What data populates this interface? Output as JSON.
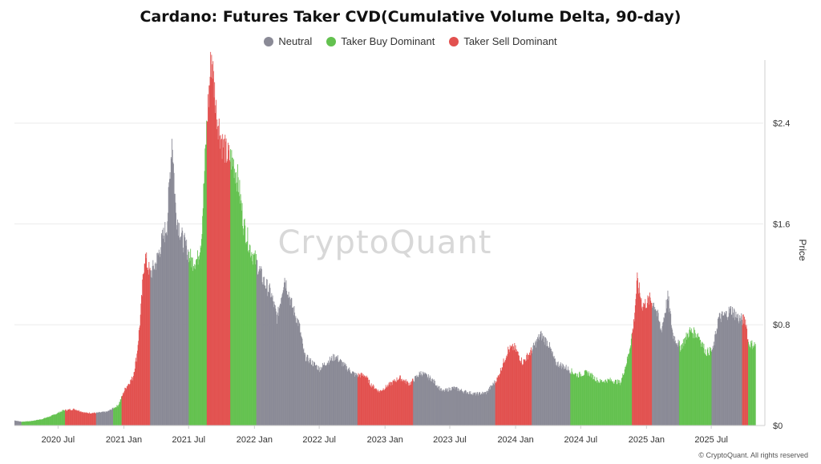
{
  "page": {
    "title": "Cardano: Futures Taker CVD(Cumulative Volume Delta, 90-day)",
    "watermark": "CryptoQuant",
    "footer": "© CryptoQuant. All rights reserved"
  },
  "legend": [
    {
      "label": "Neutral",
      "color": "#8a8a96"
    },
    {
      "label": "Taker Buy Dominant",
      "color": "#63c14f"
    },
    {
      "label": "Taker Sell Dominant",
      "color": "#e2514f"
    }
  ],
  "chart_data": {
    "type": "bar",
    "title": "Cardano: Futures Taker CVD(Cumulative Volume Delta, 90-day)",
    "ylabel": "Price",
    "y_axis_side": "right",
    "ylim": [
      0,
      2.9
    ],
    "y_ticks": [
      0,
      0.8,
      1.6,
      2.4
    ],
    "y_tick_labels": [
      "$0",
      "$0.8",
      "$1.6",
      "$2.4"
    ],
    "x_range": [
      "2020-03-01",
      "2025-11-01"
    ],
    "x_ticks": [
      "2020-07-01",
      "2021-01-01",
      "2021-07-01",
      "2022-01-01",
      "2022-07-01",
      "2023-01-01",
      "2023-07-01",
      "2024-01-01",
      "2024-07-01",
      "2025-01-01",
      "2025-07-01"
    ],
    "x_tick_labels": [
      "2020 Jul",
      "2021 Jan",
      "2021 Jul",
      "2022 Jan",
      "2022 Jul",
      "2023 Jan",
      "2023 Jul",
      "2024 Jan",
      "2024 Jul",
      "2025 Jan",
      "2025 Jul"
    ],
    "grid": true,
    "legend_position": "top-center",
    "price_series": [
      [
        "2020-03-01",
        0.04
      ],
      [
        "2020-03-20",
        0.03
      ],
      [
        "2020-04-15",
        0.035
      ],
      [
        "2020-05-15",
        0.05
      ],
      [
        "2020-06-15",
        0.08
      ],
      [
        "2020-07-15",
        0.12
      ],
      [
        "2020-08-15",
        0.13
      ],
      [
        "2020-09-15",
        0.1
      ],
      [
        "2020-10-15",
        0.1
      ],
      [
        "2020-11-15",
        0.11
      ],
      [
        "2020-12-15",
        0.16
      ],
      [
        "2021-01-05",
        0.3
      ],
      [
        "2021-01-25",
        0.38
      ],
      [
        "2021-02-05",
        0.55
      ],
      [
        "2021-02-15",
        0.85
      ],
      [
        "2021-02-27",
        1.35
      ],
      [
        "2021-03-15",
        1.2
      ],
      [
        "2021-04-01",
        1.3
      ],
      [
        "2021-04-15",
        1.45
      ],
      [
        "2021-05-01",
        1.6
      ],
      [
        "2021-05-15",
        2.3
      ],
      [
        "2021-05-25",
        1.7
      ],
      [
        "2021-06-10",
        1.5
      ],
      [
        "2021-06-25",
        1.4
      ],
      [
        "2021-07-10",
        1.3
      ],
      [
        "2021-07-25",
        1.32
      ],
      [
        "2021-08-05",
        1.5
      ],
      [
        "2021-08-20",
        2.4
      ],
      [
        "2021-09-02",
        2.95
      ],
      [
        "2021-09-15",
        2.5
      ],
      [
        "2021-10-01",
        2.25
      ],
      [
        "2021-10-15",
        2.15
      ],
      [
        "2021-11-01",
        2.1
      ],
      [
        "2021-11-15",
        1.95
      ],
      [
        "2021-12-01",
        1.6
      ],
      [
        "2021-12-20",
        1.4
      ],
      [
        "2022-01-05",
        1.3
      ],
      [
        "2022-01-25",
        1.15
      ],
      [
        "2022-02-15",
        1.05
      ],
      [
        "2022-03-05",
        0.85
      ],
      [
        "2022-03-25",
        1.18
      ],
      [
        "2022-04-15",
        0.95
      ],
      [
        "2022-05-05",
        0.8
      ],
      [
        "2022-05-20",
        0.55
      ],
      [
        "2022-06-10",
        0.5
      ],
      [
        "2022-07-01",
        0.45
      ],
      [
        "2022-07-20",
        0.5
      ],
      [
        "2022-08-15",
        0.55
      ],
      [
        "2022-09-10",
        0.47
      ],
      [
        "2022-10-10",
        0.4
      ],
      [
        "2022-11-05",
        0.4
      ],
      [
        "2022-11-20",
        0.33
      ],
      [
        "2022-12-15",
        0.27
      ],
      [
        "2023-01-10",
        0.32
      ],
      [
        "2023-02-10",
        0.38
      ],
      [
        "2023-03-10",
        0.33
      ],
      [
        "2023-04-10",
        0.42
      ],
      [
        "2023-05-10",
        0.37
      ],
      [
        "2023-06-10",
        0.27
      ],
      [
        "2023-07-10",
        0.3
      ],
      [
        "2023-08-10",
        0.27
      ],
      [
        "2023-09-10",
        0.25
      ],
      [
        "2023-10-10",
        0.26
      ],
      [
        "2023-11-10",
        0.37
      ],
      [
        "2023-12-10",
        0.6
      ],
      [
        "2023-12-28",
        0.62
      ],
      [
        "2024-01-20",
        0.5
      ],
      [
        "2024-02-15",
        0.6
      ],
      [
        "2024-03-10",
        0.72
      ],
      [
        "2024-04-01",
        0.65
      ],
      [
        "2024-04-20",
        0.5
      ],
      [
        "2024-05-20",
        0.46
      ],
      [
        "2024-06-20",
        0.4
      ],
      [
        "2024-07-20",
        0.42
      ],
      [
        "2024-08-20",
        0.35
      ],
      [
        "2024-09-20",
        0.36
      ],
      [
        "2024-10-20",
        0.34
      ],
      [
        "2024-11-10",
        0.55
      ],
      [
        "2024-11-25",
        0.8
      ],
      [
        "2024-12-05",
        1.15
      ],
      [
        "2024-12-20",
        0.95
      ],
      [
        "2025-01-10",
        1.0
      ],
      [
        "2025-01-25",
        0.95
      ],
      [
        "2025-02-10",
        0.75
      ],
      [
        "2025-03-01",
        1.02
      ],
      [
        "2025-03-15",
        0.72
      ],
      [
        "2025-04-05",
        0.62
      ],
      [
        "2025-05-01",
        0.75
      ],
      [
        "2025-05-25",
        0.72
      ],
      [
        "2025-06-15",
        0.58
      ],
      [
        "2025-07-05",
        0.6
      ],
      [
        "2025-07-20",
        0.85
      ],
      [
        "2025-08-10",
        0.88
      ],
      [
        "2025-08-25",
        0.92
      ],
      [
        "2025-09-15",
        0.85
      ],
      [
        "2025-10-05",
        0.83
      ],
      [
        "2025-10-12",
        0.65
      ],
      [
        "2025-10-28",
        0.64
      ]
    ],
    "regimes": [
      [
        "2020-03-01",
        "2020-03-20",
        "neutral"
      ],
      [
        "2020-03-20",
        "2020-05-15",
        "buy"
      ],
      [
        "2020-05-15",
        "2020-07-20",
        "buy"
      ],
      [
        "2020-07-20",
        "2020-10-15",
        "sell"
      ],
      [
        "2020-10-15",
        "2020-12-01",
        "neutral"
      ],
      [
        "2020-12-01",
        "2020-12-25",
        "buy"
      ],
      [
        "2020-12-25",
        "2021-03-15",
        "sell"
      ],
      [
        "2021-03-15",
        "2021-07-01",
        "neutral"
      ],
      [
        "2021-07-01",
        "2021-08-20",
        "buy"
      ],
      [
        "2021-08-20",
        "2021-10-25",
        "sell"
      ],
      [
        "2021-10-25",
        "2022-01-05",
        "buy"
      ],
      [
        "2022-01-05",
        "2022-03-10",
        "neutral"
      ],
      [
        "2022-03-10",
        "2022-10-15",
        "neutral"
      ],
      [
        "2022-10-15",
        "2023-01-05",
        "sell"
      ],
      [
        "2023-01-05",
        "2023-03-20",
        "sell"
      ],
      [
        "2023-03-20",
        "2023-11-05",
        "neutral"
      ],
      [
        "2023-11-05",
        "2024-02-15",
        "sell"
      ],
      [
        "2024-02-15",
        "2024-06-01",
        "neutral"
      ],
      [
        "2024-06-01",
        "2024-11-20",
        "buy"
      ],
      [
        "2024-11-20",
        "2025-01-15",
        "sell"
      ],
      [
        "2025-01-15",
        "2025-04-01",
        "neutral"
      ],
      [
        "2025-04-01",
        "2025-07-01",
        "buy"
      ],
      [
        "2025-07-01",
        "2025-09-25",
        "neutral"
      ],
      [
        "2025-09-25",
        "2025-10-12",
        "sell"
      ],
      [
        "2025-10-12",
        "2025-11-01",
        "buy"
      ]
    ]
  }
}
